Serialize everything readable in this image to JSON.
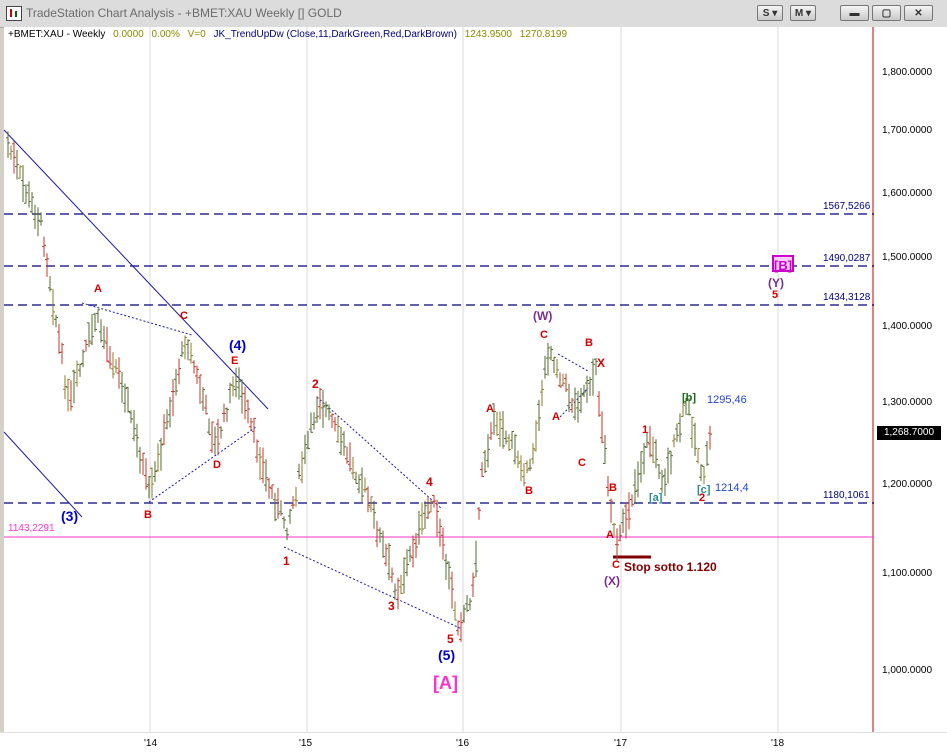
{
  "window": {
    "title": "TradeStation Chart Analysis - +BMET:XAU Weekly [] GOLD",
    "buttons": [
      {
        "name": "s-button",
        "label": "S"
      },
      {
        "name": "m-button",
        "label": "M"
      },
      {
        "name": "minimize-button",
        "label": "▬"
      },
      {
        "name": "maximize-button",
        "label": "▢"
      },
      {
        "name": "close-button",
        "label": "✕"
      }
    ]
  },
  "info": {
    "symbol": "+BMET:XAU - Weekly",
    "change": "0.0000",
    "change_pct": "0.00%",
    "volume": "V=0",
    "indicator": "JK_TrendUpDw (Close,11,DarkGreen,Red,DarkBrown)",
    "value1": "1243.9500",
    "value2": "1270.8199"
  },
  "colors": {
    "up_bar": "#556b2f",
    "down_bar": "#c0392b",
    "neutral_bar": "#8b7d2a",
    "level_line": "#00007f",
    "magenta_line": "#ff33cc",
    "grid": "#d8d8d8",
    "axis_red": "#cc0000"
  },
  "chart_data": {
    "type": "ohlc",
    "price_axis_labels": [
      "1,800.0000",
      "1,700.0000",
      "1,600.0000",
      "1,500.0000",
      "1,400.0000",
      "1,300.0000",
      "1,200.0000",
      "1,100.0000",
      "1,000.0000"
    ],
    "time_axis_labels": [
      "'14",
      "'15",
      "'16",
      "'17",
      "'18"
    ],
    "last_price": "1,268.7000",
    "horizontal_levels": [
      {
        "label": "1567,5266",
        "price": 1567.5266
      },
      {
        "label": "1490,0287",
        "price": 1490.0287
      },
      {
        "label": "1434,3128",
        "price": 1434.3128
      },
      {
        "label": "1180,1061",
        "price": 1180.1061
      }
    ],
    "magenta_level": {
      "label": "1143,2291",
      "price": 1143.2291
    },
    "wave_labels": {
      "w3_blue": "(3)",
      "a_early": "A",
      "b_early": "B",
      "c_early": "C",
      "d_early": "D",
      "e_early": "E",
      "w4_blue": "(4)",
      "w1": "1",
      "w2": "2",
      "w3": "3",
      "w4": "4",
      "w5": "5",
      "w5_blue": "(5)",
      "bigA": "[A]",
      "a2": "A",
      "b2": "B",
      "w_label": "(W)",
      "c2": "C",
      "a3": "A",
      "b3": "B",
      "c3": "C",
      "x_red": "X",
      "b4": "B",
      "a4": "A",
      "c4": "C",
      "x_label": "(X)",
      "one": "1",
      "sq_a": "[a]",
      "sq_b": "[b]",
      "sq_c": "[c]",
      "two": "2",
      "bigB": "[B]",
      "y_label": "(Y)",
      "five_small": "5"
    },
    "notes": {
      "level_1295": "1295,46",
      "level_1214": "1214,4",
      "stop": "Stop sotto 1.120"
    }
  }
}
